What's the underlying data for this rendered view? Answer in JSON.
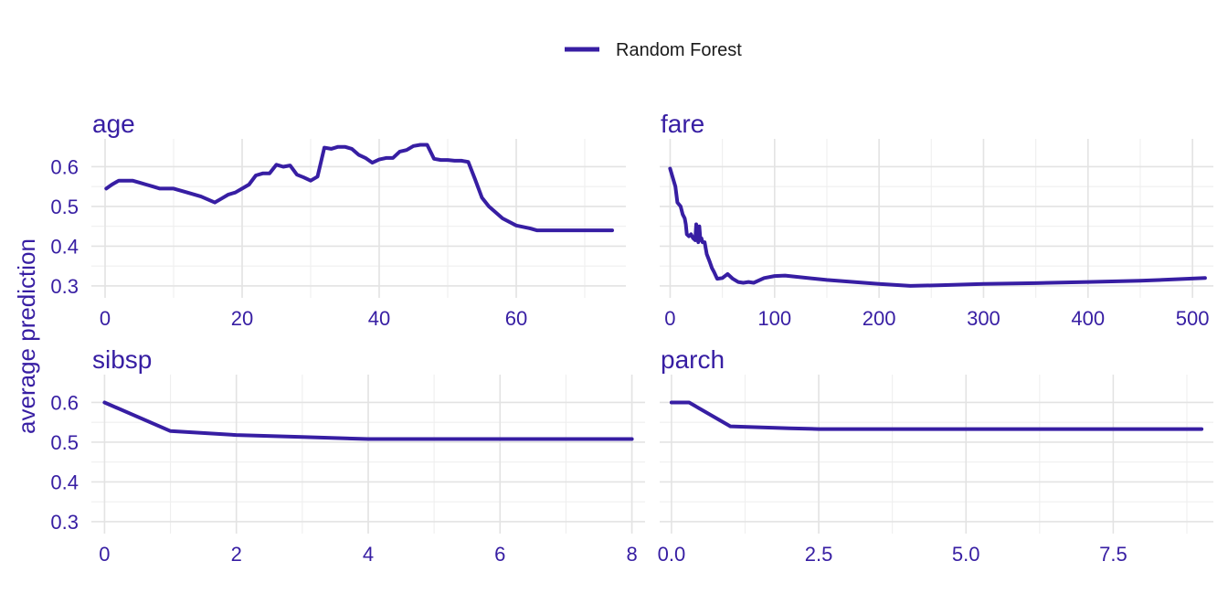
{
  "legend": {
    "label": "Random Forest"
  },
  "ylabel": "average prediction",
  "colors": {
    "series": "#371ea3",
    "text": "#371ea3"
  },
  "chart_data": [
    {
      "type": "line",
      "title": "age",
      "xlim": [
        -2,
        76
      ],
      "ylim": [
        0.27,
        0.67
      ],
      "xticks": [
        0,
        20,
        40,
        60
      ],
      "xticklabels": [
        "0",
        "20",
        "40",
        "60"
      ],
      "yticks": [
        0.3,
        0.4,
        0.5,
        0.6
      ],
      "yticklabels": [
        "0.3",
        "0.4",
        "0.5",
        "0.6"
      ],
      "series": [
        {
          "name": "Random Forest",
          "x": [
            0.17,
            1,
            2,
            3,
            4,
            5,
            6,
            7,
            8,
            10,
            12,
            14,
            16,
            17,
            18,
            19,
            20,
            21,
            22,
            23,
            24,
            25,
            26,
            27,
            28,
            29,
            30,
            31,
            32,
            33,
            34,
            35,
            36,
            37,
            38,
            39,
            40,
            41,
            42,
            43,
            44,
            45,
            46,
            47,
            48,
            49,
            50,
            51,
            52,
            53,
            54,
            55,
            56,
            58,
            60,
            62,
            63,
            64,
            65,
            66,
            70,
            71,
            74
          ],
          "y": [
            0.545,
            0.555,
            0.565,
            0.565,
            0.565,
            0.56,
            0.555,
            0.55,
            0.545,
            0.545,
            0.535,
            0.525,
            0.51,
            0.52,
            0.53,
            0.535,
            0.545,
            0.555,
            0.578,
            0.583,
            0.583,
            0.605,
            0.6,
            0.603,
            0.58,
            0.573,
            0.565,
            0.575,
            0.648,
            0.645,
            0.65,
            0.65,
            0.645,
            0.63,
            0.622,
            0.61,
            0.618,
            0.622,
            0.622,
            0.638,
            0.642,
            0.652,
            0.655,
            0.655,
            0.62,
            0.617,
            0.617,
            0.615,
            0.615,
            0.612,
            0.568,
            0.522,
            0.5,
            0.47,
            0.452,
            0.445,
            0.44,
            0.44,
            0.44,
            0.44,
            0.44,
            0.44,
            0.44
          ]
        }
      ]
    },
    {
      "type": "line",
      "title": "fare",
      "xlim": [
        -10,
        520
      ],
      "ylim": [
        0.27,
        0.67
      ],
      "xticks": [
        0,
        100,
        200,
        300,
        400,
        500
      ],
      "xticklabels": [
        "0",
        "100",
        "200",
        "300",
        "400",
        "500"
      ],
      "yticks": [
        0.3,
        0.4,
        0.5,
        0.6
      ],
      "yticklabels": [
        "",
        "",
        "",
        ""
      ],
      "series": [
        {
          "name": "Random Forest",
          "x": [
            0,
            5,
            7,
            10,
            12,
            14,
            15,
            16,
            18,
            20,
            22,
            24,
            25,
            26,
            27,
            28,
            29,
            30,
            31,
            33,
            35,
            38,
            40,
            42,
            45,
            50,
            55,
            60,
            65,
            70,
            75,
            80,
            90,
            100,
            110,
            150,
            200,
            230,
            260,
            300,
            350,
            400,
            450,
            512
          ],
          "y": [
            0.595,
            0.55,
            0.51,
            0.5,
            0.48,
            0.47,
            0.455,
            0.43,
            0.425,
            0.43,
            0.42,
            0.415,
            0.455,
            0.42,
            0.41,
            0.45,
            0.415,
            0.42,
            0.41,
            0.41,
            0.38,
            0.36,
            0.345,
            0.335,
            0.318,
            0.32,
            0.33,
            0.318,
            0.31,
            0.308,
            0.31,
            0.308,
            0.32,
            0.325,
            0.326,
            0.315,
            0.305,
            0.3,
            0.302,
            0.305,
            0.307,
            0.31,
            0.313,
            0.32
          ]
        }
      ]
    },
    {
      "type": "line",
      "title": "sibsp",
      "xlim": [
        -0.2,
        8.2
      ],
      "ylim": [
        0.27,
        0.67
      ],
      "xticks": [
        0,
        2,
        4,
        6,
        8
      ],
      "xticklabels": [
        "0",
        "2",
        "4",
        "6",
        "8"
      ],
      "yticks": [
        0.3,
        0.4,
        0.5,
        0.6
      ],
      "yticklabels": [
        "0.3",
        "0.4",
        "0.5",
        "0.6"
      ],
      "series": [
        {
          "name": "Random Forest",
          "x": [
            0,
            1,
            2,
            3,
            4,
            5,
            8
          ],
          "y": [
            0.6,
            0.528,
            0.518,
            0.513,
            0.508,
            0.508,
            0.508
          ]
        }
      ]
    },
    {
      "type": "line",
      "title": "parch",
      "xlim": [
        -0.2,
        9.2
      ],
      "ylim": [
        0.27,
        0.67
      ],
      "xticks": [
        0,
        2.5,
        5,
        7.5
      ],
      "xticklabels": [
        "0.0",
        "2.5",
        "5.0",
        "7.5"
      ],
      "yticks": [
        0.3,
        0.4,
        0.5,
        0.6
      ],
      "yticklabels": [
        "",
        "",
        "",
        ""
      ],
      "series": [
        {
          "name": "Random Forest",
          "x": [
            0,
            0.3,
            1,
            2,
            2.5,
            3,
            4,
            5,
            6,
            9
          ],
          "y": [
            0.6,
            0.6,
            0.54,
            0.535,
            0.533,
            0.533,
            0.533,
            0.533,
            0.533,
            0.533
          ]
        }
      ]
    }
  ]
}
